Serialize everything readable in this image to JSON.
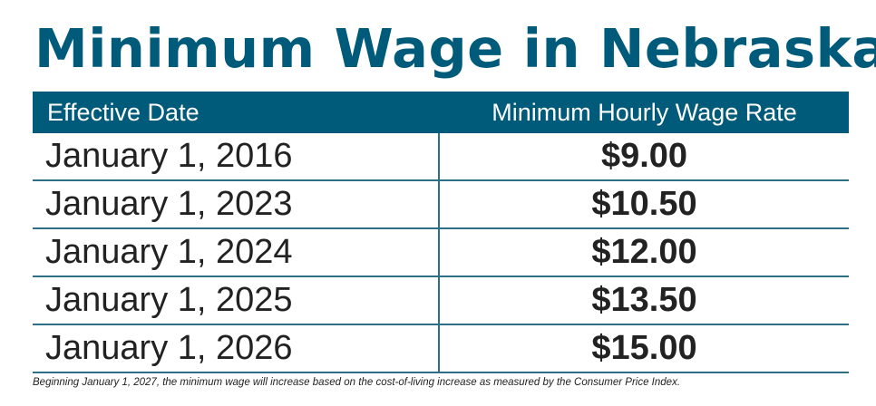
{
  "title": "Minimum Wage in Nebraska",
  "table": {
    "headers": {
      "date": "Effective Date",
      "rate": "Minimum Hourly Wage Rate"
    },
    "rows": [
      {
        "date": "January 1, 2016",
        "rate": "$9.00"
      },
      {
        "date": "January 1, 2023",
        "rate": "$10.50"
      },
      {
        "date": "January 1, 2024",
        "rate": "$12.00"
      },
      {
        "date": "January 1, 2025",
        "rate": "$13.50"
      },
      {
        "date": "January 1, 2026",
        "rate": "$15.00"
      }
    ]
  },
  "footnote": "Beginning January 1, 2027, the minimum wage will increase based on the cost-of-living increase as measured by the Consumer Price Index.",
  "colors": {
    "brand": "#005a7a",
    "text": "#222222",
    "rule": "#2e6f88"
  }
}
